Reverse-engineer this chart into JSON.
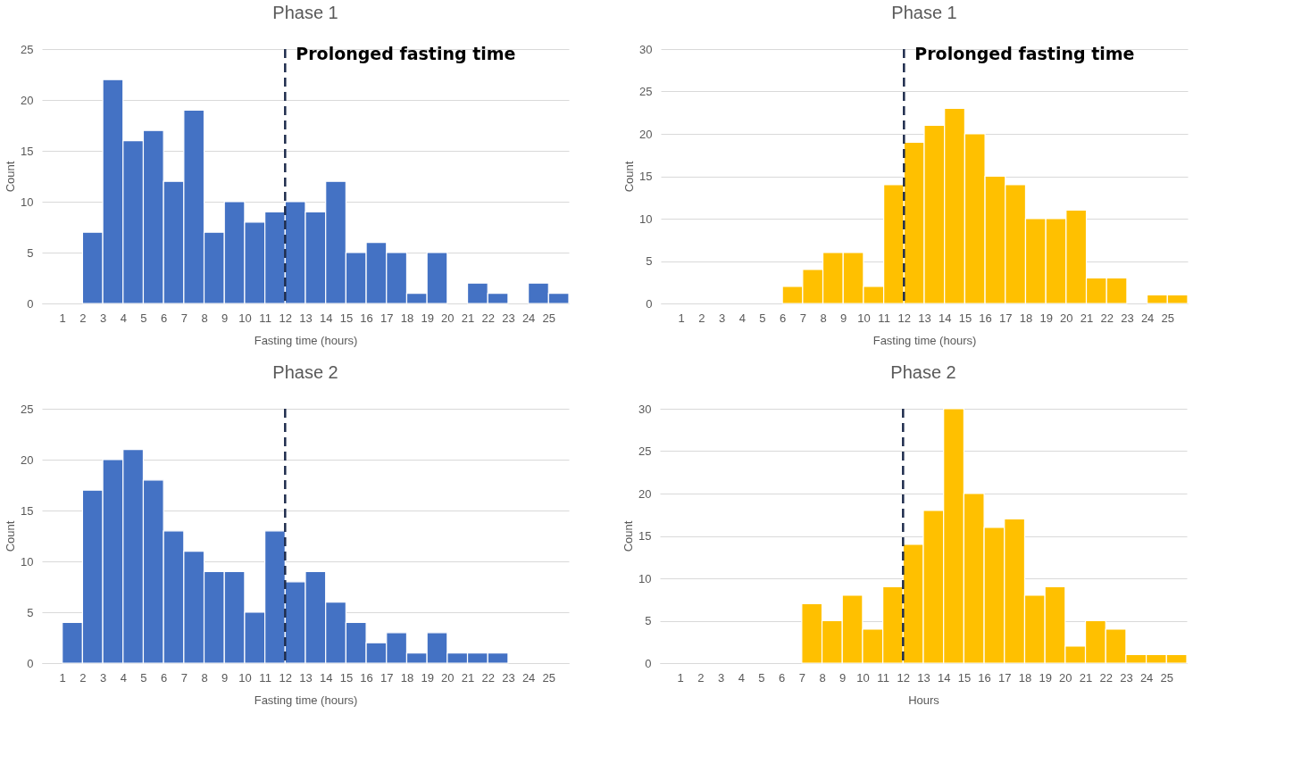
{
  "chart_data": [
    {
      "type": "histogram",
      "title": "Phase 1",
      "xlabel": "Fasting time (hours)",
      "ylabel": "Count",
      "bins": [
        1,
        2,
        3,
        4,
        5,
        6,
        7,
        8,
        9,
        10,
        11,
        12,
        13,
        14,
        15,
        16,
        17,
        18,
        19,
        20,
        21,
        22,
        23,
        24,
        25,
        26
      ],
      "values": [
        0,
        7,
        22,
        16,
        17,
        12,
        19,
        7,
        10,
        8,
        9,
        10,
        9,
        12,
        5,
        6,
        5,
        1,
        5,
        0,
        2,
        1,
        0,
        2,
        1
      ],
      "color": "#4472c4",
      "xlim": [
        0,
        26
      ],
      "xticks": [
        1,
        2,
        3,
        4,
        5,
        6,
        7,
        8,
        9,
        10,
        11,
        12,
        13,
        14,
        15,
        16,
        17,
        18,
        19,
        20,
        21,
        22,
        23,
        24,
        25
      ],
      "ylim": [
        0,
        25
      ],
      "yticks": [
        0,
        5,
        10,
        15,
        20,
        25
      ],
      "grid": "y",
      "ref_lines": [
        {
          "axis": "x",
          "value": 12,
          "label": "Prolonged fasting time",
          "color": "#1f2d4d",
          "line_style": "dashed"
        }
      ]
    },
    {
      "type": "histogram",
      "title": "Phase 1",
      "xlabel": "Fasting time (hours)",
      "ylabel": "Count",
      "bins": [
        1,
        2,
        3,
        4,
        5,
        6,
        7,
        8,
        9,
        10,
        11,
        12,
        13,
        14,
        15,
        16,
        17,
        18,
        19,
        20,
        21,
        22,
        23,
        24,
        25,
        26
      ],
      "values": [
        0,
        0,
        0,
        0,
        0,
        2,
        4,
        6,
        6,
        2,
        14,
        19,
        21,
        23,
        20,
        15,
        14,
        10,
        10,
        11,
        3,
        3,
        0,
        1,
        1
      ],
      "color": "#ffc000",
      "xlim": [
        0,
        26
      ],
      "xticks": [
        1,
        2,
        3,
        4,
        5,
        6,
        7,
        8,
        9,
        10,
        11,
        12,
        13,
        14,
        15,
        16,
        17,
        18,
        19,
        20,
        21,
        22,
        23,
        24,
        25
      ],
      "ylim": [
        0,
        30
      ],
      "yticks": [
        0,
        5,
        10,
        15,
        20,
        25,
        30
      ],
      "grid": "y",
      "ref_lines": [
        {
          "axis": "x",
          "value": 12,
          "label": "Prolonged fasting time",
          "color": "#1f2d4d",
          "line_style": "dashed"
        }
      ]
    },
    {
      "type": "histogram",
      "title": "Phase 2",
      "xlabel": "Fasting time (hours)",
      "ylabel": "Count",
      "bins": [
        1,
        2,
        3,
        4,
        5,
        6,
        7,
        8,
        9,
        10,
        11,
        12,
        13,
        14,
        15,
        16,
        17,
        18,
        19,
        20,
        21,
        22,
        23,
        24,
        25,
        26
      ],
      "values": [
        4,
        17,
        20,
        21,
        18,
        13,
        11,
        9,
        9,
        5,
        13,
        8,
        9,
        6,
        4,
        2,
        3,
        1,
        3,
        1,
        1,
        1,
        0,
        0,
        0
      ],
      "color": "#4472c4",
      "xlim": [
        0,
        26
      ],
      "xticks": [
        1,
        2,
        3,
        4,
        5,
        6,
        7,
        8,
        9,
        10,
        11,
        12,
        13,
        14,
        15,
        16,
        17,
        18,
        19,
        20,
        21,
        22,
        23,
        24,
        25
      ],
      "ylim": [
        0,
        25
      ],
      "yticks": [
        0,
        5,
        10,
        15,
        20,
        25
      ],
      "grid": "y",
      "ref_lines": [
        {
          "axis": "x",
          "value": 12,
          "color": "#1f2d4d",
          "line_style": "dashed"
        }
      ]
    },
    {
      "type": "histogram",
      "title": "Phase 2",
      "xlabel": "Hours",
      "ylabel": "Count",
      "bins": [
        1,
        2,
        3,
        4,
        5,
        6,
        7,
        8,
        9,
        10,
        11,
        12,
        13,
        14,
        15,
        16,
        17,
        18,
        19,
        20,
        21,
        22,
        23,
        24,
        25,
        26
      ],
      "values": [
        0,
        0,
        0,
        0,
        0,
        0,
        7,
        5,
        8,
        4,
        9,
        14,
        18,
        30,
        20,
        16,
        17,
        8,
        9,
        2,
        5,
        4,
        1,
        1,
        1
      ],
      "color": "#ffc000",
      "xlim": [
        0,
        26
      ],
      "xticks": [
        1,
        2,
        3,
        4,
        5,
        6,
        7,
        8,
        9,
        10,
        11,
        12,
        13,
        14,
        15,
        16,
        17,
        18,
        19,
        20,
        21,
        22,
        23,
        24,
        25
      ],
      "ylim": [
        0,
        30
      ],
      "yticks": [
        0,
        5,
        10,
        15,
        20,
        25,
        30
      ],
      "grid": "y",
      "ref_lines": [
        {
          "axis": "x",
          "value": 12,
          "color": "#1f2d4d",
          "line_style": "dashed"
        }
      ]
    }
  ]
}
